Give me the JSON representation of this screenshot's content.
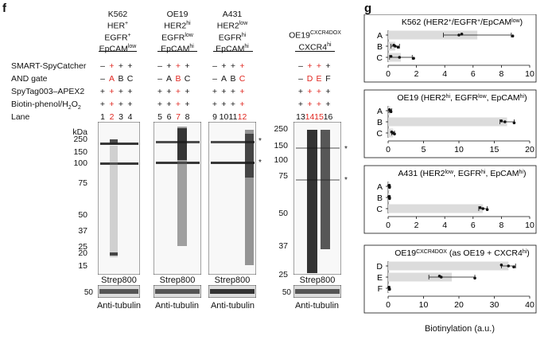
{
  "panel_f": {
    "letter": "f",
    "groups": [
      {
        "line1": "K562",
        "line2": "HER",
        "line2_sup": "+",
        "line3": "EGFR",
        "line3_sup": "+",
        "line4": "EpCAM",
        "line4_sup": "low"
      },
      {
        "line1": "OE19",
        "line2": "HER2",
        "line2_sup": "hi",
        "line3": "EGFR",
        "line3_sup": "low",
        "line4": "EpCAM",
        "line4_sup": "hi"
      },
      {
        "line1": "A431",
        "line2": "HER2",
        "line2_sup": "low",
        "line3": "EGFR",
        "line3_sup": "hi",
        "line4": "EpCAM",
        "line4_sup": "hi"
      },
      {
        "line1": "OE19",
        "line1_sup": "CXCR4DOX",
        "line2": "CXCR4",
        "line2_sup": "hi"
      }
    ],
    "row_labels": [
      "SMART-SpyCatcher",
      "AND gate",
      "SpyTag003–APEX2",
      "Biotin-phenol/H",
      "Lane"
    ],
    "row_label_h2o2_sub": "2",
    "row_label_h2o2_tail": "O",
    "row_label_h2o2_sub2": "2",
    "rows": {
      "smart": [
        "–",
        "+",
        "+",
        "+",
        "–",
        "+",
        "+",
        "+",
        "–",
        "+",
        "+",
        "+",
        "–",
        "+",
        "+",
        "+"
      ],
      "andgate": [
        "–",
        "A",
        "B",
        "C",
        "–",
        "A",
        "B",
        "C",
        "–",
        "A",
        "B",
        "C",
        "–",
        "D",
        "E",
        "F"
      ],
      "spytag": [
        "+",
        "+",
        "+",
        "+",
        "+",
        "+",
        "+",
        "+",
        "+",
        "+",
        "+",
        "+",
        "+",
        "+",
        "+",
        "+"
      ],
      "biotin": [
        "+",
        "+",
        "+",
        "+",
        "+",
        "+",
        "+",
        "+",
        "+",
        "+",
        "+",
        "+",
        "+",
        "+",
        "+",
        "+"
      ],
      "lane": [
        "1",
        "2",
        "3",
        "4",
        "5",
        "6",
        "7",
        "8",
        "9",
        "10",
        "11",
        "12",
        "13",
        "14",
        "15",
        "16"
      ]
    },
    "red_lanes": [
      2,
      7,
      12,
      14,
      15
    ],
    "kda_label": "kDa",
    "markers_left": [
      "250",
      "150",
      "100",
      "75",
      "50",
      "37",
      "25",
      "20",
      "15"
    ],
    "markers_right": [
      "250",
      "150",
      "100",
      "75",
      "50",
      "37",
      "25"
    ],
    "asterisk": "*",
    "blot_caption": "Strep800",
    "tubulin_marker": "50",
    "tubulin_caption": "Anti-tubulin"
  },
  "panel_g": {
    "letter": "g",
    "xlabel": "Biotinylation (a.u.)"
  },
  "chart_data": [
    {
      "type": "bar",
      "orientation": "horizontal",
      "title": "K562 (HER2+/EGFR+/EpCAMlow)",
      "title_parts": [
        "K562 (HER2",
        "+",
        "/EGFR",
        "+",
        "/EpCAM",
        "low",
        ")"
      ],
      "categories": [
        "A",
        "B",
        "C"
      ],
      "values": [
        6.3,
        0.5,
        0.9
      ],
      "errors": [
        2.4,
        0.3,
        0.8
      ],
      "points": [
        [
          5.2,
          5.0,
          8.8
        ],
        [
          0.4,
          0.5,
          0.7
        ],
        [
          0.2,
          0.8,
          1.8
        ]
      ],
      "xlim": [
        0,
        10
      ],
      "xticks": [
        0,
        2,
        4,
        6,
        8,
        10
      ]
    },
    {
      "type": "bar",
      "orientation": "horizontal",
      "title": "OE19 (HER2hi, EGFRlow, EpCAMhi)",
      "title_parts": [
        "OE19 (HER2",
        "hi",
        ", EGFR",
        "low",
        ", EpCAM",
        "hi",
        ")"
      ],
      "categories": [
        "A",
        "B",
        "C"
      ],
      "values": [
        0.3,
        16.8,
        0.7
      ],
      "errors": [
        0.2,
        1.0,
        0.2
      ],
      "points": [
        [
          0.2,
          0.3,
          0.4
        ],
        [
          16.0,
          16.5,
          17.8
        ],
        [
          0.5,
          0.7,
          0.9
        ]
      ],
      "xlim": [
        0,
        20
      ],
      "xticks": [
        0,
        5,
        10,
        15,
        20
      ]
    },
    {
      "type": "bar",
      "orientation": "horizontal",
      "title": "A431 (HER2low, EGFRhi, EpCAMhi)",
      "title_parts": [
        "A431 (HER2",
        "low",
        ", EGFR",
        "hi",
        ", EpCAM",
        "hi",
        ")"
      ],
      "categories": [
        "A",
        "B",
        "C"
      ],
      "values": [
        0.1,
        0.1,
        6.7
      ],
      "errors": [
        0.05,
        0.05,
        0.3
      ],
      "points": [
        [
          0.05,
          0.1,
          0.1
        ],
        [
          0.05,
          0.1,
          0.1
        ],
        [
          6.5,
          6.7,
          7.0
        ]
      ],
      "xlim": [
        0,
        10
      ],
      "xticks": [
        0,
        2,
        4,
        6,
        8,
        10
      ]
    },
    {
      "type": "bar",
      "orientation": "horizontal",
      "title": "OE19CXCR4DOX (as OE19 + CXCR4hi)",
      "title_parts": [
        "OE19",
        "CXCR4DOX",
        " (as OE19 + CXCR4",
        "hi",
        ")"
      ],
      "categories": [
        "D",
        "E",
        "F"
      ],
      "values": [
        34.0,
        18.0,
        0.3
      ],
      "errors": [
        2.0,
        6.5,
        0.2
      ],
      "points": [
        [
          32.0,
          34.0,
          35.5
        ],
        [
          14.5,
          15.0,
          24.5
        ],
        [
          0.2,
          0.3,
          0.4
        ]
      ],
      "xlim": [
        0,
        40
      ],
      "xticks": [
        0,
        10,
        20,
        30,
        40
      ]
    }
  ]
}
